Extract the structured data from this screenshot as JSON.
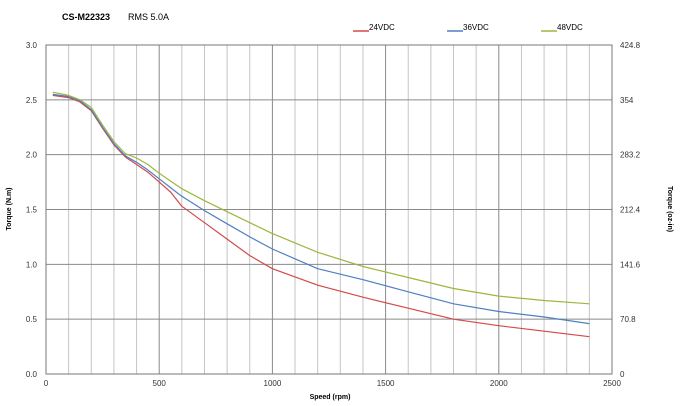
{
  "header": {
    "model": "CS-M22323",
    "current": "RMS 5.0A"
  },
  "chart_data": {
    "type": "line",
    "xlabel": "Speed (rpm)",
    "ylabel": "Torque (N.m)",
    "y2label": "Torque (oz-in)",
    "xlim": [
      0,
      2500
    ],
    "ylim": [
      0,
      3.0
    ],
    "y2lim": [
      0,
      424.8
    ],
    "xticks": [
      0,
      500,
      1000,
      1500,
      2000,
      2500
    ],
    "yticks": [
      "0.0",
      "0.5",
      "1.0",
      "1.5",
      "2.0",
      "2.5",
      "3.0"
    ],
    "y2ticks": [
      "0",
      "70.8",
      "141.6",
      "212.4",
      "283.2",
      "354",
      "424.8"
    ],
    "x_minor_step": 100,
    "grid": true,
    "legend_position": "top-right",
    "series": [
      {
        "name": "24VDC",
        "color": "#d24a4a",
        "x": [
          30,
          100,
          150,
          200,
          250,
          300,
          350,
          400,
          450,
          500,
          550,
          600,
          700,
          800,
          900,
          1000,
          1200,
          1400,
          1600,
          1800,
          2000,
          2200,
          2400
        ],
        "values": [
          2.54,
          2.52,
          2.48,
          2.4,
          2.24,
          2.09,
          1.98,
          1.91,
          1.84,
          1.75,
          1.66,
          1.53,
          1.38,
          1.23,
          1.08,
          0.96,
          0.81,
          0.7,
          0.6,
          0.5,
          0.44,
          0.39,
          0.34
        ]
      },
      {
        "name": "36VDC",
        "color": "#4f7fc2",
        "x": [
          30,
          100,
          150,
          200,
          250,
          300,
          350,
          400,
          450,
          500,
          550,
          600,
          700,
          800,
          900,
          1000,
          1200,
          1400,
          1600,
          1800,
          2000,
          2200,
          2400
        ],
        "values": [
          2.55,
          2.53,
          2.49,
          2.41,
          2.25,
          2.1,
          1.99,
          1.93,
          1.86,
          1.78,
          1.7,
          1.62,
          1.49,
          1.37,
          1.25,
          1.14,
          0.96,
          0.86,
          0.75,
          0.64,
          0.57,
          0.52,
          0.46
        ]
      },
      {
        "name": "48VDC",
        "color": "#9ab83c",
        "x": [
          30,
          100,
          150,
          200,
          250,
          300,
          350,
          400,
          450,
          500,
          550,
          600,
          700,
          800,
          900,
          1000,
          1200,
          1400,
          1600,
          1800,
          2000,
          2200,
          2400
        ],
        "values": [
          2.57,
          2.54,
          2.5,
          2.43,
          2.27,
          2.12,
          2.01,
          1.97,
          1.91,
          1.83,
          1.76,
          1.69,
          1.58,
          1.48,
          1.38,
          1.28,
          1.11,
          0.98,
          0.88,
          0.78,
          0.71,
          0.67,
          0.64
        ]
      }
    ]
  }
}
